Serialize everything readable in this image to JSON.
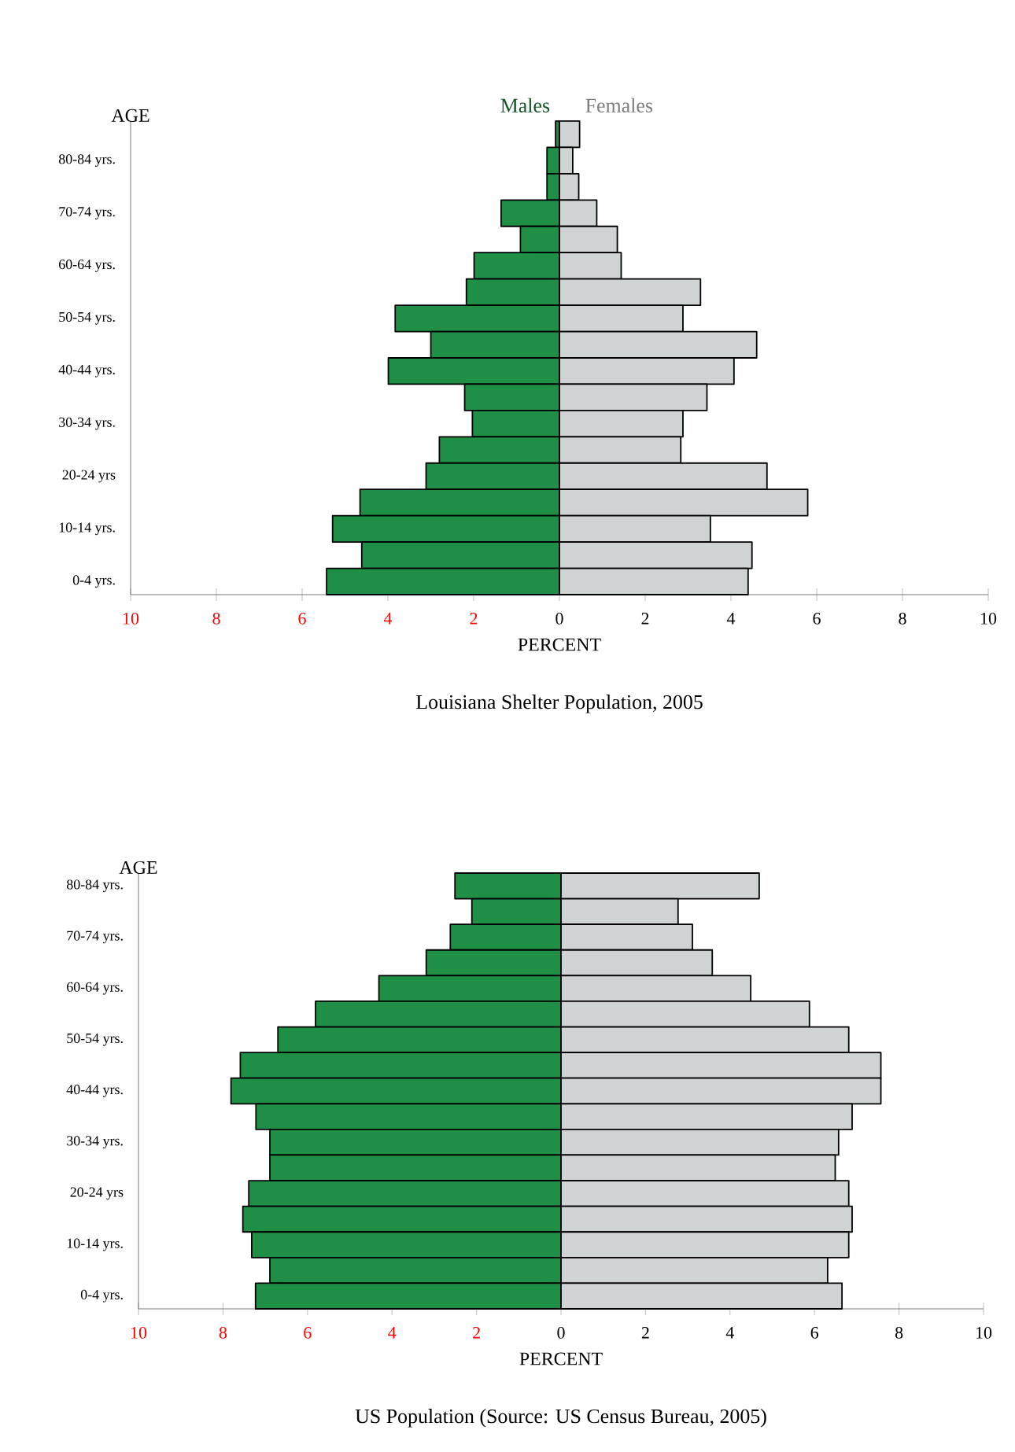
{
  "chart_data": [
    {
      "type": "bar",
      "orientation": "horizontal",
      "stacked": true,
      "title": "Louisiana Shelter Population, 2005",
      "xlabel": "PERCENT",
      "ylabel": "AGE",
      "categories": [
        null,
        "80-84 yrs.",
        null,
        "70-74 yrs.",
        null,
        "60-64 yrs.",
        null,
        "50-54 yrs.",
        null,
        "40-44 yrs.",
        null,
        "30-34 yrs.",
        null,
        "20-24 yrs",
        null,
        "10-14 yrs.",
        null,
        "0-4 yrs."
      ],
      "series": [
        {
          "name": "Males",
          "color": "#1f8f45",
          "values": [
            -0.09,
            -0.29,
            -0.29,
            -1.36,
            -0.91,
            -1.99,
            -2.17,
            -3.83,
            -3.0,
            -3.99,
            -2.21,
            -2.03,
            -2.8,
            -3.11,
            -4.65,
            -5.29,
            -4.61,
            -5.43
          ]
        },
        {
          "name": "Females",
          "color": "#d0d3d4",
          "values": [
            0.47,
            0.31,
            0.45,
            0.87,
            1.35,
            1.44,
            3.29,
            2.88,
            4.6,
            4.07,
            3.44,
            2.88,
            2.83,
            4.84,
            5.79,
            3.52,
            4.49,
            4.4
          ]
        }
      ],
      "xlim": [
        -10,
        10
      ],
      "xticks": [
        {
          "value": -10,
          "label": "10"
        },
        {
          "value": -8,
          "label": "8"
        },
        {
          "value": -6,
          "label": "6"
        },
        {
          "value": -4,
          "label": "4"
        },
        {
          "value": -2,
          "label": "2"
        },
        0,
        2,
        4,
        6,
        8,
        10
      ]
    },
    {
      "type": "bar",
      "orientation": "horizontal",
      "stacked": true,
      "title": "US Population (Source: US Census Bureau, 2005)",
      "xlabel": "PERCENT",
      "ylabel": "AGE",
      "categories": [
        "80-84 yrs.",
        null,
        "70-74 yrs.",
        null,
        "60-64 yrs.",
        null,
        "50-54 yrs.",
        null,
        "40-44 yrs.",
        null,
        "30-34 yrs.",
        null,
        "20-24 yrs",
        null,
        "10-14 yrs.",
        null,
        "0-4 yrs."
      ],
      "series": [
        {
          "color": "#1f8f45",
          "values": [
            -2.51,
            -2.11,
            -2.62,
            -3.19,
            -4.31,
            -5.81,
            -6.7,
            -7.59,
            -7.81,
            -7.22,
            -6.89,
            -6.89,
            -7.39,
            -7.53,
            -7.32,
            -6.89,
            -7.23
          ]
        },
        {
          "color": "#d0d3d4",
          "values": [
            4.69,
            2.77,
            3.11,
            3.58,
            4.49,
            5.88,
            6.81,
            7.57,
            7.57,
            6.89,
            6.57,
            6.49,
            6.81,
            6.89,
            6.81,
            6.31,
            6.65
          ]
        }
      ],
      "xlim": [
        -10,
        10
      ],
      "xticks": [
        {
          "value": -10,
          "label": "10"
        },
        {
          "value": -8,
          "label": "8"
        },
        {
          "value": -6,
          "label": "6"
        },
        {
          "value": -4,
          "label": "4"
        },
        {
          "value": -2,
          "label": "2"
        },
        0,
        2,
        4,
        6,
        8,
        10
      ]
    }
  ]
}
